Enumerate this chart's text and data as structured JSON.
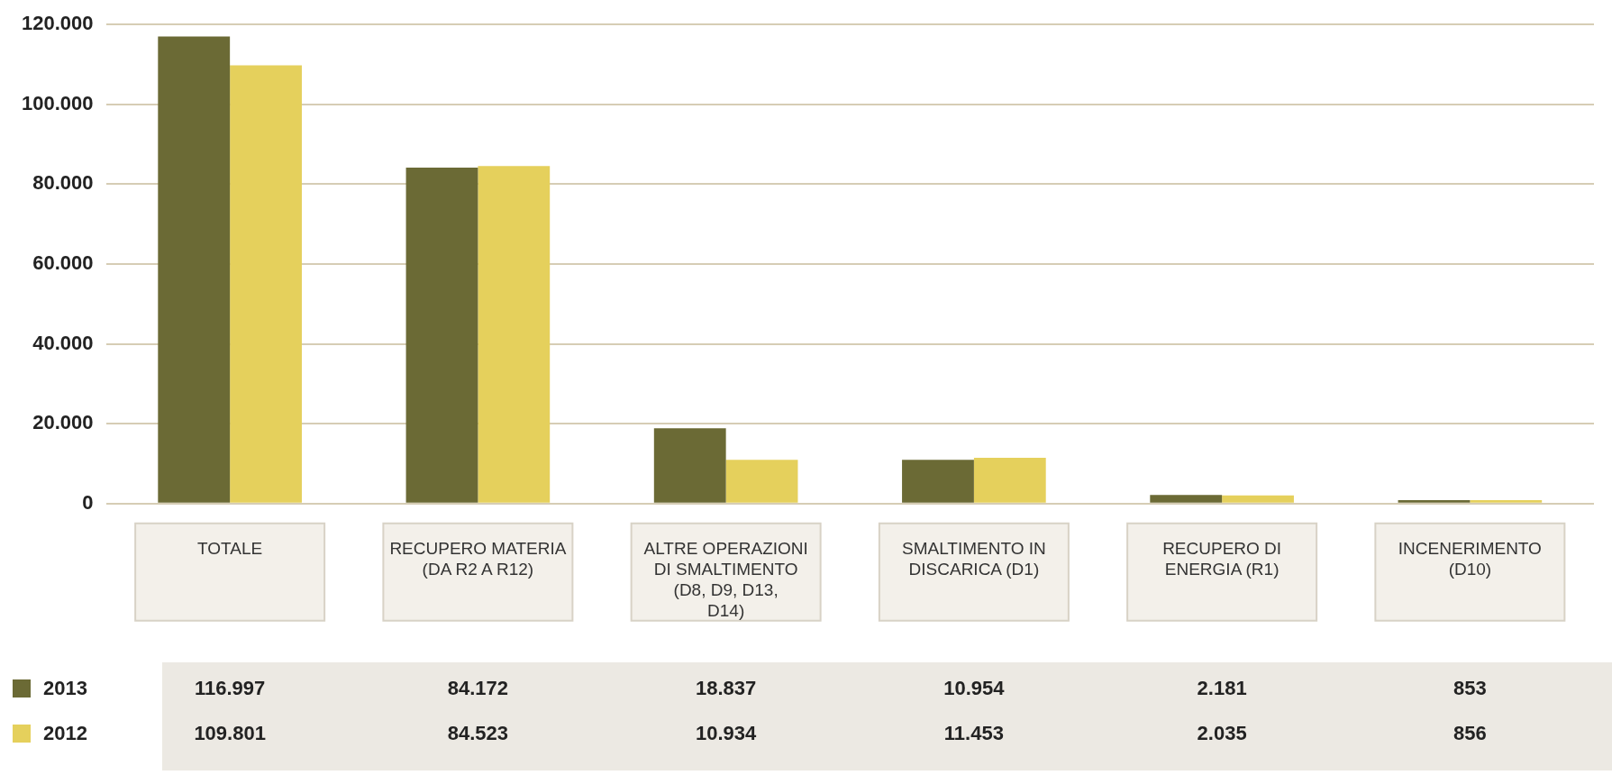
{
  "chart_data": {
    "type": "bar",
    "categories": [
      "TOTALE",
      "RECUPERO MATERIA (DA R2 A R12)",
      "ALTRE OPERAZIONI DI SMALTIMENTO (D8, D9, D13, D14)",
      "SMALTIMENTO IN DISCARICA (D1)",
      "RECUPERO DI ENERGIA (R1)",
      "INCENERIMENTO (D10)"
    ],
    "series": [
      {
        "name": "2013",
        "color": "#6b6a35",
        "values": [
          116997,
          84172,
          18837,
          10954,
          2181,
          853
        ],
        "value_labels": [
          "116.997",
          "84.172",
          "18.837",
          "10.954",
          "2.181",
          "853"
        ]
      },
      {
        "name": "2012",
        "color": "#e5d05c",
        "values": [
          109801,
          84523,
          10934,
          11453,
          2035,
          856
        ],
        "value_labels": [
          "109.801",
          "84.523",
          "10.934",
          "11.453",
          "2.035",
          "856"
        ]
      }
    ],
    "ylim": [
      0,
      120000
    ],
    "yticks": [
      0,
      {
        "value": 20000,
        "label": "20.000"
      },
      {
        "value": 40000,
        "label": "40.000"
      },
      {
        "value": 60000,
        "label": "60.000"
      },
      {
        "value": 80000,
        "label": "80.000"
      },
      {
        "value": 100000,
        "label": "100.000"
      },
      {
        "value": 120000,
        "label": "120.000"
      }
    ],
    "grid": "y",
    "legend": "bottom left"
  }
}
